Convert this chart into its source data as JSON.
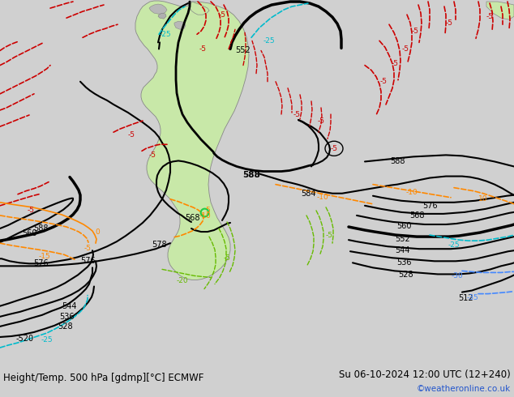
{
  "title_left": "Height/Temp. 500 hPa [gdmp][°C] ECMWF",
  "title_right": "Su 06-10-2024 12:00 UTC (12+240)",
  "credit": "©weatheronline.co.uk",
  "bg_color": "#d0d0d0",
  "ocean_color": "#d2d2d2",
  "land_color": "#d8d8d8",
  "sa_green": "#c8e8a8",
  "fig_width": 6.34,
  "fig_height": 4.9,
  "dpi": 100
}
